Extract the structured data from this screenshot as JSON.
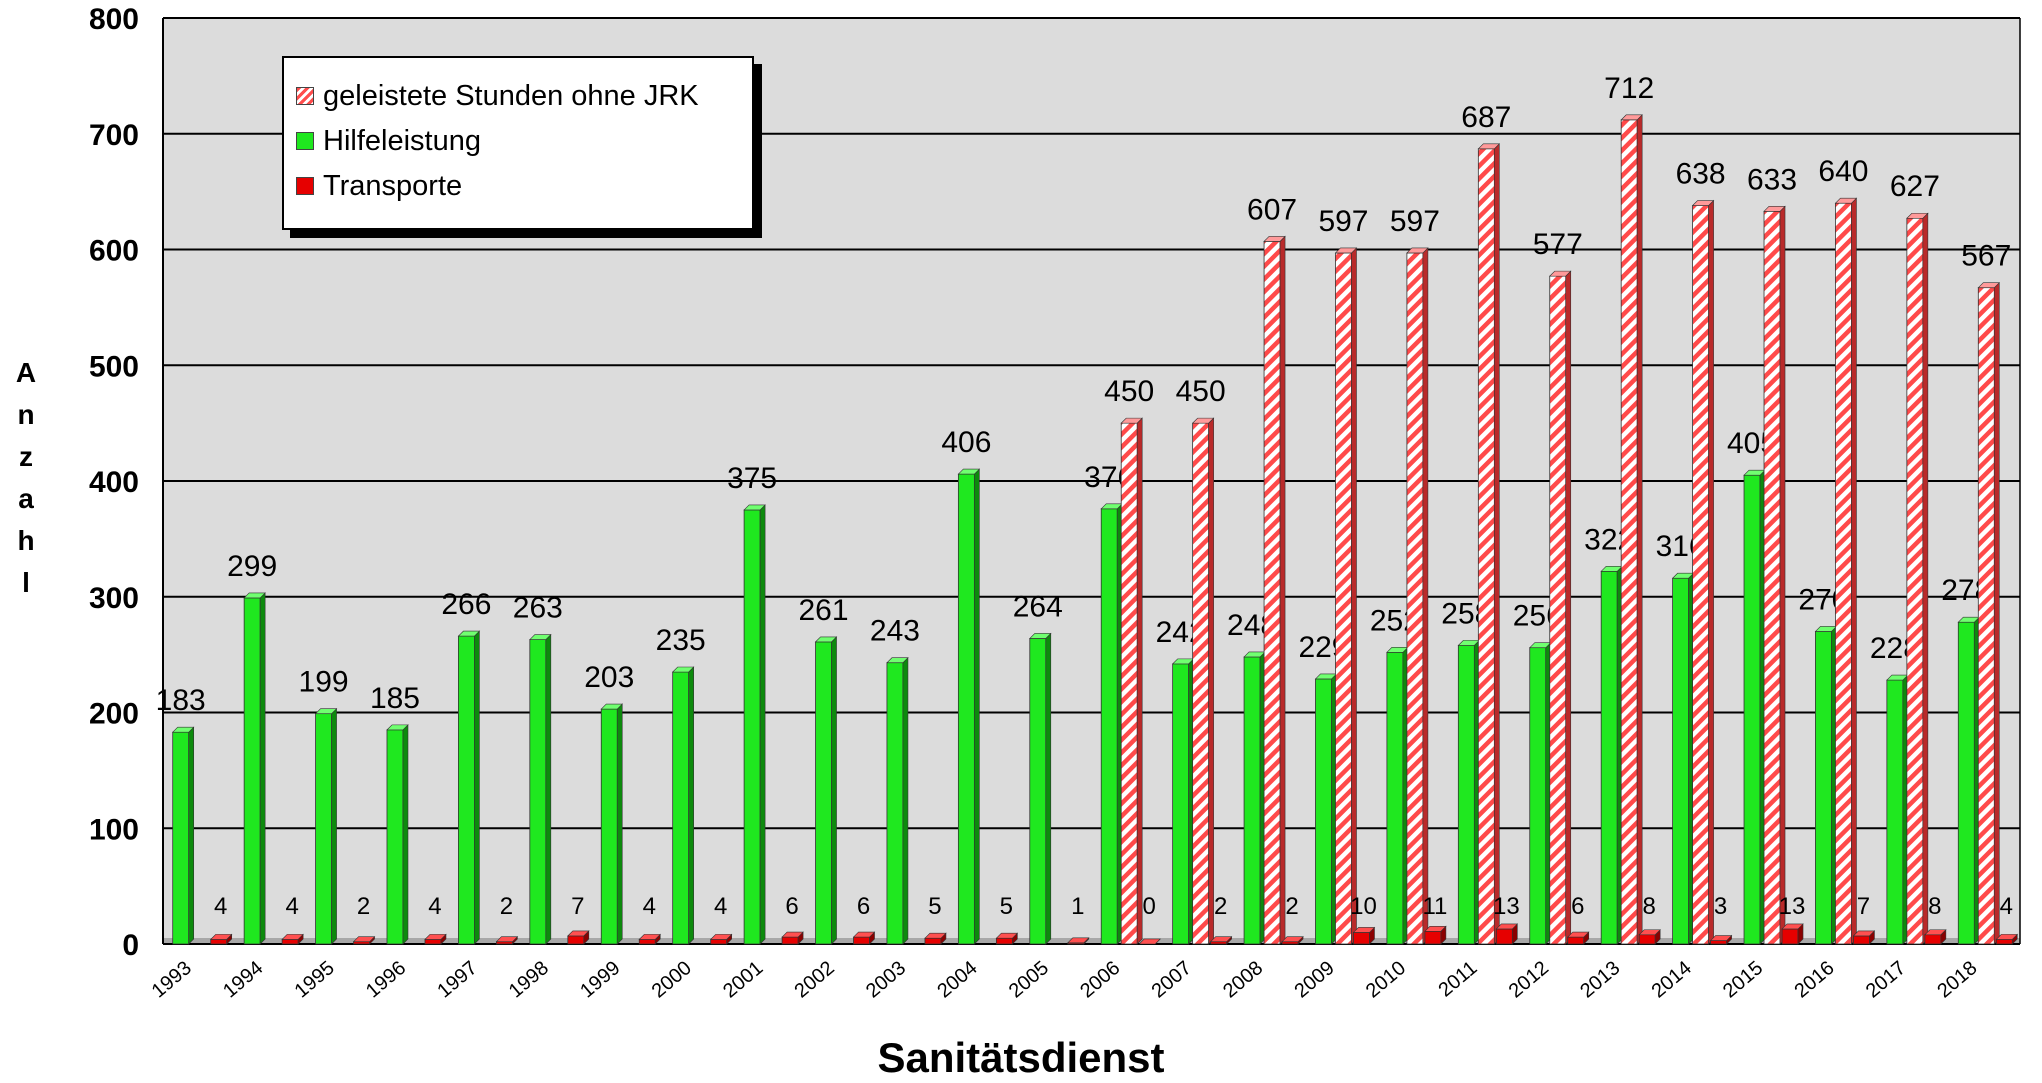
{
  "chart_data": {
    "type": "bar",
    "xlabel": "Sanitätsdienst",
    "ylabel": "Anzahl",
    "ylim": [
      0,
      800
    ],
    "yticks": [
      "0",
      "100",
      "200",
      "300",
      "400",
      "500",
      "600",
      "700",
      "800"
    ],
    "grid": true,
    "legend_position": "top-left",
    "categories": [
      "1993",
      "1994",
      "1995",
      "1996",
      "1997",
      "1998",
      "1999",
      "2000",
      "2001",
      "2002",
      "2003",
      "2004",
      "2005",
      "2006",
      "2007",
      "2008",
      "2009",
      "2010",
      "2011",
      "2012",
      "2013",
      "2014",
      "2015",
      "2016",
      "2017",
      "2018"
    ],
    "series": [
      {
        "name": "geleistete Stunden ohne JRK",
        "color": "#ff3b3b",
        "pattern": "hatched",
        "values": [
          null,
          null,
          null,
          null,
          null,
          null,
          null,
          null,
          null,
          null,
          null,
          null,
          null,
          450,
          450,
          607,
          597,
          597,
          687,
          577,
          712,
          638,
          633,
          640,
          627,
          567
        ]
      },
      {
        "name": "Hilfeleistung",
        "color": "#1fe81f",
        "values": [
          183,
          299,
          199,
          185,
          266,
          263,
          203,
          235,
          375,
          261,
          243,
          406,
          264,
          376,
          242,
          248,
          229,
          252,
          258,
          256,
          322,
          316,
          405,
          270,
          228,
          278
        ]
      },
      {
        "name": "Transporte",
        "color": "#e60000",
        "values": [
          4,
          4,
          2,
          4,
          2,
          7,
          4,
          4,
          6,
          6,
          5,
          5,
          1,
          0,
          2,
          2,
          10,
          11,
          13,
          6,
          8,
          3,
          13,
          7,
          8,
          4
        ]
      }
    ]
  }
}
